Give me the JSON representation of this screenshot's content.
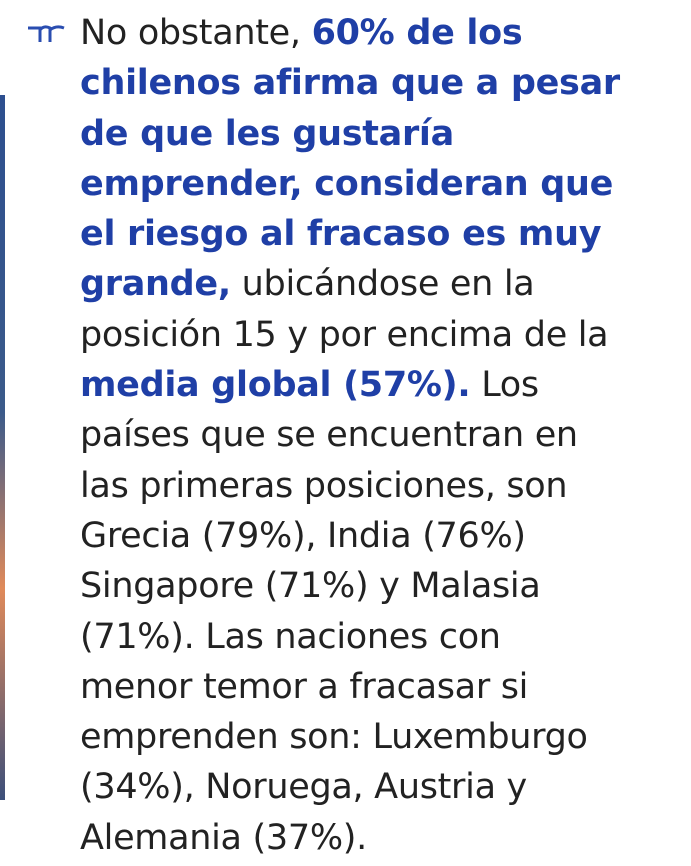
{
  "paragraph": {
    "lines": [
      [
        {
          "text": "No obstante, ",
          "bold": false
        },
        {
          "text": "60% de los",
          "bold": true
        }
      ],
      [
        {
          "text": "chilenos afirma que a pesar",
          "bold": true
        }
      ],
      [
        {
          "text": "de que les gustaría",
          "bold": true
        }
      ],
      [
        {
          "text": "emprender, consideran que",
          "bold": true
        }
      ],
      [
        {
          "text": "el riesgo al fracaso es muy",
          "bold": true
        }
      ],
      [
        {
          "text": "grande,",
          "bold": true
        },
        {
          "text": " ubicándose en la",
          "bold": false
        }
      ],
      [
        {
          "text": "posición 15 y por encima de la",
          "bold": false
        }
      ],
      [
        {
          "text": "media global (57%).",
          "bold": true
        },
        {
          "text": " Los",
          "bold": false
        }
      ],
      [
        {
          "text": "países que se encuentran en",
          "bold": false
        }
      ],
      [
        {
          "text": "las primeras posiciones, son",
          "bold": false
        }
      ],
      [
        {
          "text": "Grecia (79%), India (76%)",
          "bold": false
        }
      ],
      [
        {
          "text": "Singapore (71%) y Malasia",
          "bold": false
        }
      ],
      [
        {
          "text": "(71%). Las naciones con",
          "bold": false
        }
      ],
      [
        {
          "text": "menor temor a fracasar si",
          "bold": false
        }
      ],
      [
        {
          "text": "emprenden son: Luxemburgo",
          "bold": false
        }
      ],
      [
        {
          "text": "(34%), Noruega, Austria y",
          "bold": false
        }
      ],
      [
        {
          "text": "Alemania (37%).",
          "bold": false
        }
      ]
    ]
  }
}
